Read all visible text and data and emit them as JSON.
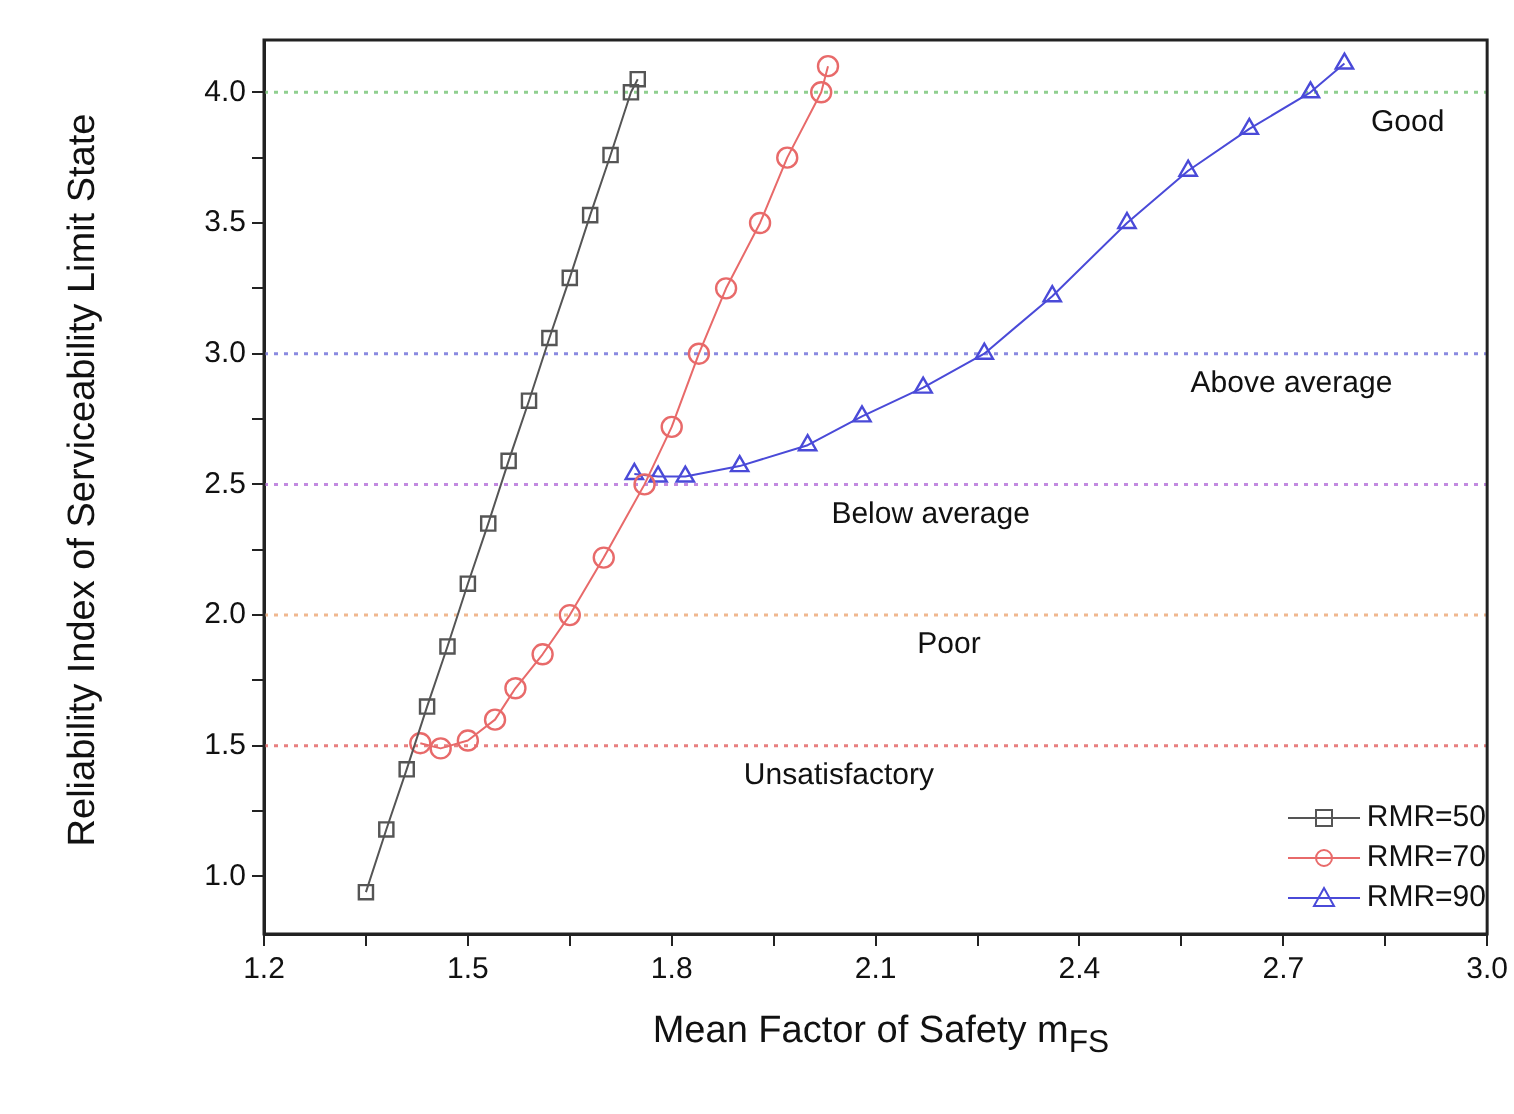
{
  "chart_data": {
    "type": "line",
    "xlabel": "Mean Factor of Safety m$_{FS}$",
    "ylabel": "Reliability Index of Serviceability Limit State",
    "xlim": [
      1.2,
      3.0
    ],
    "xticks": [
      1.2,
      {
        "value": 1.35,
        "label": null
      },
      1.5,
      {
        "value": 1.65,
        "label": null
      },
      1.8,
      {
        "value": 1.95,
        "label": null
      },
      2.1,
      {
        "value": 2.25,
        "label": null
      },
      2.4,
      {
        "value": 2.55,
        "label": null
      },
      2.7,
      {
        "value": 2.85,
        "label": null
      },
      {
        "value": 3.0,
        "label": "3.0"
      }
    ],
    "ylim": [
      0.78,
      4.2
    ],
    "yticks": [
      {
        "value": 1.0,
        "label": "1.0"
      },
      {
        "value": 1.25,
        "label": null
      },
      1.5,
      {
        "value": 1.75,
        "label": null
      },
      {
        "value": 2.0,
        "label": "2.0"
      },
      {
        "value": 2.25,
        "label": null
      },
      2.5,
      {
        "value": 2.75,
        "label": null
      },
      {
        "value": 3.0,
        "label": "3.0"
      },
      {
        "value": 3.25,
        "label": null
      },
      3.5,
      {
        "value": 3.75,
        "label": null
      },
      {
        "value": 4.0,
        "label": "4.0"
      }
    ],
    "grid": false,
    "legend": "bottom right",
    "line_style": "solid",
    "series": [
      {
        "name": "RMR=50",
        "color": "#555555",
        "marker": "square",
        "x": [
          1.35,
          1.38,
          1.41,
          1.44,
          1.47,
          1.5,
          1.53,
          1.56,
          1.59,
          1.62,
          1.65,
          1.68,
          1.71,
          1.74,
          1.75
        ],
        "values": [
          0.94,
          1.18,
          1.41,
          1.65,
          1.88,
          2.12,
          2.35,
          2.59,
          2.82,
          3.06,
          3.29,
          3.53,
          3.76,
          4.0,
          4.05
        ]
      },
      {
        "name": "RMR=70",
        "color": "#e86a6a",
        "marker": "circle",
        "x": [
          1.43,
          1.46,
          1.5,
          1.54,
          1.57,
          1.61,
          1.65,
          1.7,
          1.76,
          1.8,
          1.84,
          1.88,
          1.93,
          1.97,
          2.02,
          2.03
        ],
        "values": [
          1.51,
          1.49,
          1.52,
          1.6,
          1.72,
          1.85,
          2.0,
          2.22,
          2.5,
          2.72,
          3.0,
          3.25,
          3.5,
          3.75,
          4.0,
          4.1
        ]
      },
      {
        "name": "RMR=90",
        "color": "#4a4ad8",
        "marker": "triangle",
        "x": [
          1.745,
          1.78,
          1.82,
          1.9,
          2.0,
          2.08,
          2.17,
          2.26,
          2.36,
          2.47,
          2.56,
          2.65,
          2.74,
          2.79
        ],
        "values": [
          2.54,
          2.53,
          2.53,
          2.57,
          2.65,
          2.76,
          2.87,
          3.0,
          3.22,
          3.5,
          3.7,
          3.86,
          4.0,
          4.11
        ]
      }
    ],
    "ref_lines": [
      {
        "axis": "y",
        "value": 4.0,
        "label": "Good",
        "color": "#8fcf8f",
        "line_style": "dotted"
      },
      {
        "axis": "y",
        "value": 3.0,
        "label": "Above average",
        "color": "#8a8ae0",
        "line_style": "dotted"
      },
      {
        "axis": "y",
        "value": 2.5,
        "label": "Below average",
        "color": "#c28ae0",
        "line_style": "dotted"
      },
      {
        "axis": "y",
        "value": 2.0,
        "label": "Poor",
        "color": "#f0b890",
        "line_style": "dotted"
      },
      {
        "axis": "y",
        "value": 1.5,
        "label": "Unsatisfactory",
        "color": "#e88080",
        "line_style": "dotted"
      }
    ]
  }
}
